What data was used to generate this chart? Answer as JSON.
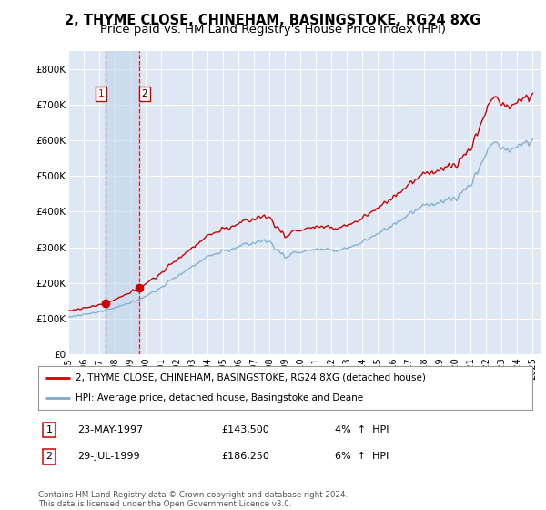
{
  "title": "2, THYME CLOSE, CHINEHAM, BASINGSTOKE, RG24 8XG",
  "subtitle": "Price paid vs. HM Land Registry's House Price Index (HPI)",
  "ylim": [
    0,
    850000
  ],
  "yticks": [
    0,
    100000,
    200000,
    300000,
    400000,
    500000,
    600000,
    700000,
    800000
  ],
  "ytick_labels": [
    "£0",
    "£100K",
    "£200K",
    "£300K",
    "£400K",
    "£500K",
    "£600K",
    "£700K",
    "£800K"
  ],
  "legend_line1": "2, THYME CLOSE, CHINEHAM, BASINGSTOKE, RG24 8XG (detached house)",
  "legend_line2": "HPI: Average price, detached house, Basingstoke and Deane",
  "sale1_date": 1997.39,
  "sale1_price": 143500,
  "sale2_date": 1999.58,
  "sale2_price": 186250,
  "line_color_red": "#cc0000",
  "line_color_blue": "#7aabcf",
  "dot_color_red": "#cc0000",
  "background_plot": "#dde8f4",
  "background_fig": "#ffffff",
  "grid_color": "#ffffff",
  "shade_color": "#c5d8ec",
  "title_fontsize": 10.5,
  "subtitle_fontsize": 9.5,
  "footer": "Contains HM Land Registry data © Crown copyright and database right 2024.\nThis data is licensed under the Open Government Licence v3.0."
}
